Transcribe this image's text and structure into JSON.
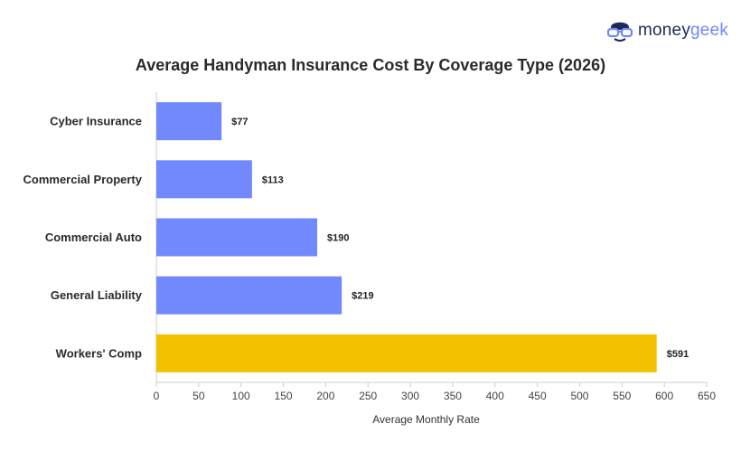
{
  "brand": {
    "money": "money",
    "geek": "geek",
    "icon": "nerd-glasses-icon"
  },
  "chart_data": {
    "type": "bar",
    "orientation": "horizontal",
    "title": "Average Handyman Insurance Cost By Coverage Type (2026)",
    "xlabel": "Average Monthly Rate",
    "ylabel": "",
    "categories": [
      "Cyber Insurance",
      "Commercial Property",
      "Commercial Auto",
      "General Liability",
      "Workers' Comp"
    ],
    "values": [
      77,
      113,
      190,
      219,
      591
    ],
    "value_labels": [
      "$77",
      "$113",
      "$190",
      "$219",
      "$591"
    ],
    "bar_colors": [
      "#7289fe",
      "#7289fe",
      "#7289fe",
      "#7289fe",
      "#f2c200"
    ],
    "xlim": [
      0,
      650
    ],
    "xticks": [
      0,
      50,
      100,
      150,
      200,
      250,
      300,
      350,
      400,
      450,
      500,
      550,
      600,
      650
    ],
    "grid": false,
    "legend": "none"
  }
}
